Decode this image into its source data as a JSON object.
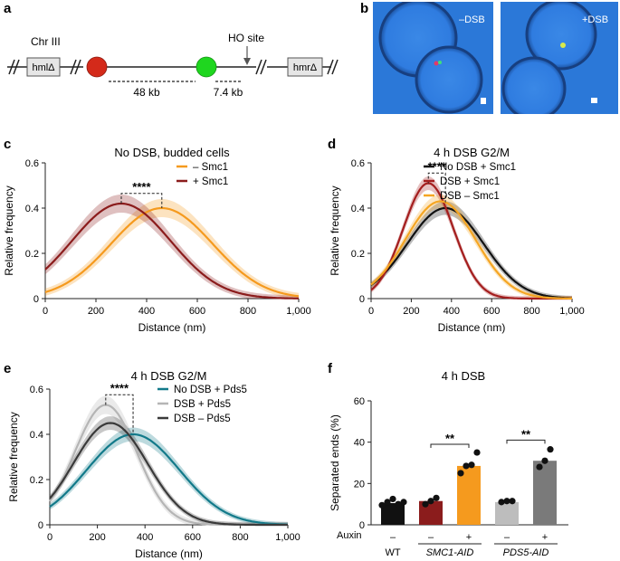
{
  "panel_letters": [
    "a",
    "b",
    "c",
    "d",
    "e",
    "f"
  ],
  "schematic": {
    "chr_label": "Chr III",
    "ho_label": "HO site",
    "left_box": "hmlΔ",
    "right_box": "hmrΔ",
    "dist1": "48 kb",
    "dist2": "7.4 kb",
    "colors": {
      "red_dot": "#d42a1a",
      "green_dot": "#1fd61f"
    }
  },
  "micro": {
    "label_minus": "–DSB",
    "label_plus": "+DSB",
    "bg": "#2b78d8"
  },
  "chart_data": [
    {
      "id": "c",
      "type": "line",
      "title": "No DSB, budded cells",
      "xlabel": "Distance (nm)",
      "ylabel": "Relative frequency",
      "xlim": [
        0,
        1000
      ],
      "ylim": [
        0,
        0.6
      ],
      "xticks": [
        "0",
        "200",
        "400",
        "600",
        "800",
        "1,000"
      ],
      "yticks": [
        "0",
        "0.2",
        "0.4",
        "0.6"
      ],
      "significance": "****",
      "series": [
        {
          "name": "– Smc1",
          "color": "#f59a1e",
          "sigma": 200,
          "peak": 0.4,
          "mode": 460,
          "band": 0.04
        },
        {
          "name": "+ Smc1",
          "color": "#8b1c1c",
          "sigma": 195,
          "peak": 0.42,
          "mode": 300,
          "band": 0.04
        }
      ],
      "bracket": [
        300,
        460
      ]
    },
    {
      "id": "d",
      "type": "line",
      "title": "4 h DSB G2/M",
      "xlabel": "Distance (nm)",
      "ylabel": "Relative frequency",
      "xlim": [
        0,
        1000
      ],
      "ylim": [
        0,
        0.6
      ],
      "xticks": [
        "0",
        "200",
        "400",
        "600",
        "800",
        "1,000"
      ],
      "yticks": [
        "0",
        "0.2",
        "0.4",
        "0.6"
      ],
      "significance": "****",
      "series": [
        {
          "name": "No DSB + Smc1",
          "color": "#111111",
          "sigma": 190,
          "peak": 0.4,
          "mode": 370,
          "band": 0.03
        },
        {
          "name": "DSB + Smc1",
          "color": "#a41e1e",
          "sigma": 125,
          "peak": 0.51,
          "mode": 285,
          "band": 0.03
        },
        {
          "name": "DSB – Smc1",
          "color": "#f5a623",
          "sigma": 175,
          "peak": 0.43,
          "mode": 345,
          "band": 0.03
        }
      ],
      "bracket": [
        285,
        370
      ]
    },
    {
      "id": "e",
      "type": "line",
      "title": "4 h DSB G2/M",
      "xlabel": "Distance (nm)",
      "ylabel": "Relative frequency",
      "xlim": [
        0,
        1000
      ],
      "ylim": [
        0,
        0.6
      ],
      "xticks": [
        "0",
        "200",
        "400",
        "600",
        "800",
        "1,000"
      ],
      "yticks": [
        "0",
        "0.2",
        "0.4",
        "0.6"
      ],
      "significance": "****",
      "series": [
        {
          "name": "No DSB + Pds5",
          "color": "#127a8a",
          "sigma": 195,
          "peak": 0.4,
          "mode": 350,
          "band": 0.03
        },
        {
          "name": "DSB + Pds5",
          "color": "#b5b5b5",
          "sigma": 130,
          "peak": 0.53,
          "mode": 235,
          "band": 0.04
        },
        {
          "name": "DSB – Pds5",
          "color": "#3a3a3a",
          "sigma": 155,
          "peak": 0.45,
          "mode": 255,
          "band": 0.03
        }
      ],
      "bracket": [
        235,
        350
      ]
    },
    {
      "id": "f",
      "type": "bar",
      "title": "4 h DSB",
      "ylabel": "Separated ends (%)",
      "ylim": [
        0,
        60
      ],
      "yticks": [
        "0",
        "20",
        "40",
        "60"
      ],
      "auxin_label": "Auxin",
      "categories": [
        "WT",
        "SMC1-AID",
        "PDS5-AID"
      ],
      "bars": [
        {
          "group": "WT",
          "auxin": "–",
          "value": 10.5,
          "color": "#111111",
          "points": [
            9.5,
            11,
            12.5,
            10,
            11
          ]
        },
        {
          "group": "SMC1-AID",
          "auxin": "–",
          "value": 11.5,
          "color": "#8b1c1c",
          "points": [
            10,
            11.5,
            13
          ]
        },
        {
          "group": "SMC1-AID",
          "auxin": "+",
          "value": 28.5,
          "color": "#f59a1e",
          "points": [
            25,
            28.5,
            29,
            35
          ]
        },
        {
          "group": "PDS5-AID",
          "auxin": "–",
          "value": 11,
          "color": "#bdbdbd",
          "points": [
            11,
            11.5,
            11.5
          ]
        },
        {
          "group": "PDS5-AID",
          "auxin": "+",
          "value": 31,
          "color": "#7a7a7a",
          "points": [
            28,
            31,
            36.5
          ]
        }
      ],
      "significance": [
        "**",
        "**"
      ]
    }
  ]
}
